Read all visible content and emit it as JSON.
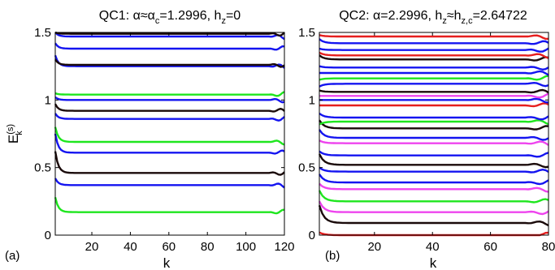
{
  "chart_data": [
    {
      "type": "line",
      "title": "QC1: α≈α",
      "title_sub": "c",
      "title_rest": "=1.2996, h",
      "title_sub2": "z",
      "title_end": "=0",
      "xlabel": "k",
      "ylabel": "E",
      "ylabel_sup": "(s)",
      "ylabel_sub": "k",
      "panel_label": "(a)",
      "xlim": [
        1,
        120
      ],
      "ylim": [
        0,
        1.5
      ],
      "xticks": [
        "20",
        "40",
        "60",
        "80",
        "100",
        "120"
      ],
      "xtick_values": [
        20,
        40,
        60,
        80,
        100,
        120
      ],
      "yticks": [
        "0",
        "0.5",
        "1",
        "1.5"
      ],
      "ytick_values": [
        0,
        0.5,
        1,
        1.5
      ],
      "colors": {
        "blue": "#1414f0",
        "green": "#1ee61e",
        "black": "#1a0a0a",
        "red": "#e61e1e",
        "magenta": "#ee44ee"
      },
      "series": [
        {
          "color": "green",
          "start": 0.28,
          "values": [
            0.17
          ]
        },
        {
          "color": "blue",
          "start": 0.42,
          "values": [
            0.37
          ]
        },
        {
          "color": "black",
          "start": 0.62,
          "values": [
            0.46
          ]
        },
        {
          "color": "blue",
          "start": 0.75,
          "values": [
            0.61
          ]
        },
        {
          "color": "green",
          "start": 0.8,
          "values": [
            0.69
          ]
        },
        {
          "color": "blue",
          "start": 0.9,
          "values": [
            0.86
          ]
        },
        {
          "color": "black",
          "start": 0.97,
          "values": [
            0.92
          ]
        },
        {
          "color": "blue",
          "start": 1.02,
          "values": [
            1.0
          ]
        },
        {
          "color": "green",
          "start": 1.05,
          "values": [
            1.04
          ]
        },
        {
          "color": "blue",
          "start": 1.33,
          "values": [
            1.25
          ]
        },
        {
          "color": "black",
          "start": 1.3,
          "values": [
            1.26
          ]
        },
        {
          "color": "blue",
          "start": 1.42,
          "values": [
            1.38
          ]
        },
        {
          "color": "blue",
          "start": 1.5,
          "values": [
            1.47
          ]
        },
        {
          "color": "black",
          "start": 1.5,
          "values": [
            1.49
          ]
        }
      ]
    },
    {
      "type": "line",
      "title": "QC2: α=2.2996, h",
      "title_sub": "z",
      "title_rest": "≈h",
      "title_sub2": "z,c",
      "title_end": "=2.64722",
      "xlabel": "k",
      "panel_label": "(b)",
      "xlim": [
        1,
        80
      ],
      "ylim": [
        0,
        1.5
      ],
      "xticks": [
        "20",
        "40",
        "60",
        "80"
      ],
      "xtick_values": [
        20,
        40,
        60,
        80
      ],
      "yticks": [
        "0",
        "0.5",
        "1",
        "1.5"
      ],
      "ytick_values": [
        0,
        0.5,
        1,
        1.5
      ],
      "colors": {
        "blue": "#1414f0",
        "green": "#1ee61e",
        "black": "#1a0a0a",
        "red": "#e61e1e",
        "magenta": "#ee44ee"
      },
      "series": [
        {
          "color": "red",
          "start": 0.02,
          "values": [
            0.0
          ]
        },
        {
          "color": "black",
          "start": 0.22,
          "values": [
            0.09
          ]
        },
        {
          "color": "magenta",
          "start": 0.25,
          "values": [
            0.17
          ]
        },
        {
          "color": "green",
          "start": 0.33,
          "values": [
            0.25
          ]
        },
        {
          "color": "magenta",
          "start": 0.38,
          "values": [
            0.34
          ]
        },
        {
          "color": "blue",
          "start": 0.45,
          "values": [
            0.39
          ]
        },
        {
          "color": "blue",
          "start": 0.5,
          "values": [
            0.47
          ]
        },
        {
          "color": "black",
          "start": 0.6,
          "values": [
            0.52
          ]
        },
        {
          "color": "blue",
          "start": 0.62,
          "values": [
            0.59
          ]
        },
        {
          "color": "magenta",
          "start": 0.7,
          "values": [
            0.68
          ]
        },
        {
          "color": "blue",
          "start": 0.78,
          "values": [
            0.72
          ]
        },
        {
          "color": "black",
          "start": 0.85,
          "values": [
            0.79
          ]
        },
        {
          "color": "green",
          "start": 0.82,
          "values": [
            0.84
          ]
        },
        {
          "color": "blue",
          "start": 0.9,
          "values": [
            0.87
          ]
        },
        {
          "color": "red",
          "start": 0.96,
          "values": [
            0.96
          ]
        },
        {
          "color": "blue",
          "start": 1.0,
          "values": [
            1.0
          ]
        },
        {
          "color": "magenta",
          "start": 1.03,
          "values": [
            1.03
          ]
        },
        {
          "color": "black",
          "start": 1.07,
          "values": [
            1.06
          ]
        },
        {
          "color": "blue",
          "start": 1.1,
          "values": [
            1.12
          ]
        },
        {
          "color": "green",
          "start": 1.15,
          "values": [
            1.16
          ]
        },
        {
          "color": "blue",
          "start": 1.2,
          "values": [
            1.2
          ]
        },
        {
          "color": "blue",
          "start": 1.25,
          "values": [
            1.24
          ]
        },
        {
          "color": "black",
          "start": 1.33,
          "values": [
            1.3
          ]
        },
        {
          "color": "red",
          "start": 1.35,
          "values": [
            1.33
          ]
        },
        {
          "color": "blue",
          "start": 1.38,
          "values": [
            1.37
          ]
        },
        {
          "color": "blue",
          "start": 1.45,
          "values": [
            1.42
          ]
        },
        {
          "color": "red",
          "start": 1.48,
          "values": [
            1.47
          ]
        }
      ]
    }
  ]
}
